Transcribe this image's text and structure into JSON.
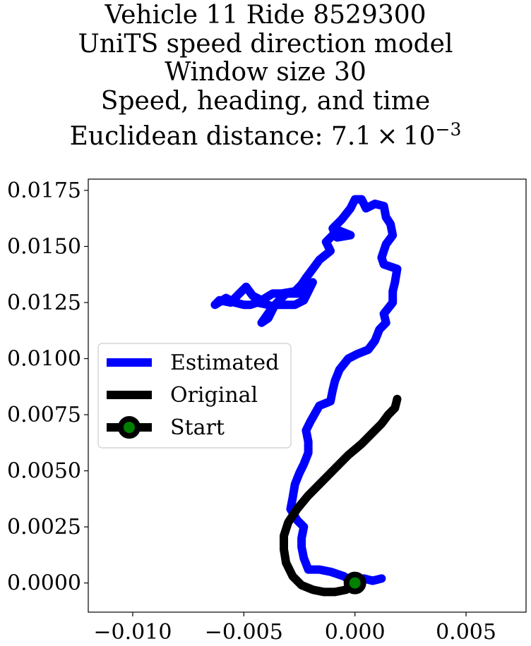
{
  "title_lines": [
    "Vehicle 11 Ride 8529300",
    "UniTS speed direction model",
    "Window size 30",
    "Speed, heading, and time"
  ],
  "title_last_prefix": "Euclidean distance: 7.1 × 10",
  "title_last_exponent": "−3",
  "chart_data": {
    "type": "line",
    "title": "Vehicle 11 Ride 8529300 / UniTS speed direction model / Window size 30 / Speed, heading, and time / Euclidean distance: 7.1 × 10^-3",
    "xlabel": "",
    "ylabel": "",
    "xlim": [
      -0.012,
      0.0077
    ],
    "ylim": [
      -0.0013,
      0.018
    ],
    "x_ticks": [
      -0.01,
      -0.005,
      0.0,
      0.005
    ],
    "x_tick_labels": [
      "−0.010",
      "−0.005",
      "0.000",
      "0.005"
    ],
    "y_ticks": [
      0.0,
      0.0025,
      0.005,
      0.0075,
      0.01,
      0.0125,
      0.015,
      0.0175
    ],
    "y_tick_labels": [
      "0.0000",
      "0.0025",
      "0.0050",
      "0.0075",
      "0.0100",
      "0.0125",
      "0.0150",
      "0.0175"
    ],
    "grid": false,
    "legend_position": "center-left",
    "series": [
      {
        "name": "Estimated",
        "color": "#0000ff",
        "points": [
          [
            0.0012,
            0.0002
          ],
          [
            0.0008,
            0.0001
          ],
          [
            0.0004,
            0.0002
          ],
          [
            0.0,
            0.0
          ],
          [
            -0.0005,
            0.0003
          ],
          [
            -0.0011,
            0.0005
          ],
          [
            -0.0016,
            0.0006
          ],
          [
            -0.0021,
            0.0006
          ],
          [
            -0.0023,
            0.0011
          ],
          [
            -0.0024,
            0.0016
          ],
          [
            -0.0024,
            0.002
          ],
          [
            -0.0023,
            0.0025
          ],
          [
            -0.0026,
            0.0028
          ],
          [
            -0.0029,
            0.0033
          ],
          [
            -0.0028,
            0.0038
          ],
          [
            -0.0027,
            0.0044
          ],
          [
            -0.0025,
            0.0049
          ],
          [
            -0.0023,
            0.0053
          ],
          [
            -0.0021,
            0.0058
          ],
          [
            -0.0021,
            0.0063
          ],
          [
            -0.0022,
            0.0068
          ],
          [
            -0.002,
            0.0072
          ],
          [
            -0.0016,
            0.0079
          ],
          [
            -0.0011,
            0.0081
          ],
          [
            -0.001,
            0.0086
          ],
          [
            -0.0009,
            0.009
          ],
          [
            -0.0007,
            0.0095
          ],
          [
            -0.0003,
            0.01
          ],
          [
            0.0001,
            0.0102
          ],
          [
            0.0006,
            0.0104
          ],
          [
            0.0009,
            0.0108
          ],
          [
            0.0011,
            0.0113
          ],
          [
            0.0014,
            0.0116
          ],
          [
            0.0013,
            0.012
          ],
          [
            0.0017,
            0.0125
          ],
          [
            0.0017,
            0.013
          ],
          [
            0.0018,
            0.0134
          ],
          [
            0.0019,
            0.014
          ],
          [
            0.0013,
            0.0142
          ],
          [
            0.0012,
            0.0145
          ],
          [
            0.0014,
            0.0151
          ],
          [
            0.0017,
            0.0155
          ],
          [
            0.0016,
            0.016
          ],
          [
            0.0014,
            0.0163
          ],
          [
            0.0013,
            0.0168
          ],
          [
            0.0009,
            0.0169
          ],
          [
            0.0005,
            0.0167
          ],
          [
            0.0003,
            0.0171
          ],
          [
            0.0,
            0.0171
          ],
          [
            -0.0002,
            0.0167
          ],
          [
            -0.0006,
            0.0162
          ],
          [
            -0.001,
            0.0158
          ],
          [
            -0.0008,
            0.0154
          ],
          [
            -0.0002,
            0.0155
          ],
          [
            -0.0007,
            0.0157
          ],
          [
            -0.001,
            0.0155
          ],
          [
            -0.0013,
            0.0152
          ],
          [
            -0.0011,
            0.0148
          ],
          [
            -0.0016,
            0.0144
          ],
          [
            -0.0019,
            0.014
          ],
          [
            -0.0022,
            0.0136
          ],
          [
            -0.0024,
            0.0133
          ],
          [
            -0.0027,
            0.013
          ],
          [
            -0.0033,
            0.0129
          ],
          [
            -0.0037,
            0.0129
          ],
          [
            -0.0042,
            0.0126
          ],
          [
            -0.0046,
            0.0128
          ],
          [
            -0.0049,
            0.0132
          ],
          [
            -0.0052,
            0.0129
          ],
          [
            -0.0056,
            0.0125
          ],
          [
            -0.0061,
            0.0126
          ],
          [
            -0.0063,
            0.0124
          ],
          [
            -0.0058,
            0.0127
          ],
          [
            -0.0054,
            0.0125
          ],
          [
            -0.005,
            0.0124
          ],
          [
            -0.0047,
            0.0124
          ],
          [
            -0.0044,
            0.0125
          ],
          [
            -0.0039,
            0.0124
          ],
          [
            -0.0037,
            0.0123
          ],
          [
            -0.0042,
            0.0116
          ],
          [
            -0.0039,
            0.0118
          ],
          [
            -0.0036,
            0.0124
          ],
          [
            -0.0031,
            0.0129
          ],
          [
            -0.0025,
            0.0129
          ],
          [
            -0.0022,
            0.013
          ],
          [
            -0.0019,
            0.0134
          ],
          [
            -0.0021,
            0.013
          ],
          [
            -0.0023,
            0.0126
          ],
          [
            -0.0027,
            0.0124
          ],
          [
            -0.0031,
            0.0124
          ],
          [
            -0.0036,
            0.0124
          ]
        ]
      },
      {
        "name": "Original",
        "color": "#000000",
        "points": [
          [
            0.0,
            0.0
          ],
          [
            -0.0004,
            -0.0003
          ],
          [
            -0.0009,
            -0.0004
          ],
          [
            -0.0014,
            -0.0004
          ],
          [
            -0.0019,
            -0.0003
          ],
          [
            -0.0024,
            -0.0001
          ],
          [
            -0.0028,
            0.0003
          ],
          [
            -0.0031,
            0.0009
          ],
          [
            -0.0032,
            0.0015
          ],
          [
            -0.0032,
            0.0021
          ],
          [
            -0.003,
            0.0027
          ],
          [
            -0.0026,
            0.0033
          ],
          [
            -0.0021,
            0.0039
          ],
          [
            -0.0015,
            0.0045
          ],
          [
            -0.0009,
            0.0051
          ],
          [
            -0.0003,
            0.0057
          ],
          [
            0.0003,
            0.0062
          ],
          [
            0.0008,
            0.0067
          ],
          [
            0.0012,
            0.0071
          ],
          [
            0.0015,
            0.0075
          ],
          [
            0.0018,
            0.0078
          ],
          [
            0.0019,
            0.0082
          ]
        ]
      },
      {
        "name": "Start",
        "color": "#000000",
        "marker_fill": "#008000",
        "points": [
          [
            0.0,
            0.0
          ]
        ]
      }
    ]
  }
}
